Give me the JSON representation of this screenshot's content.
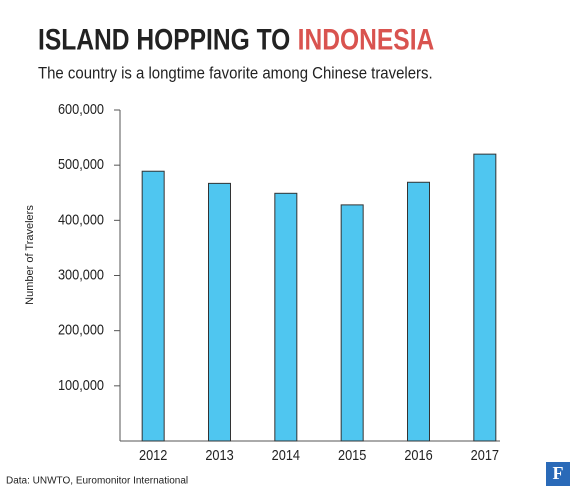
{
  "chart_data": {
    "type": "bar",
    "title": "ISLAND HOPPING TO",
    "title_highlight": "INDONESIA",
    "subtitle": "The country is a longtime favorite among Chinese travelers.",
    "y_label": "Number of Travelers",
    "source": "Data: UNWTO, Euromonitor International",
    "logo": "F",
    "categories": [
      "2012",
      "2013",
      "2014",
      "2015",
      "2016",
      "2017"
    ],
    "values": [
      489000,
      467000,
      449000,
      428000,
      469000,
      520000
    ],
    "color": "#4fc6f0",
    "ylim": [
      0,
      600000
    ],
    "yticks": [
      {
        "value": 100000,
        "label": "100,000"
      },
      {
        "value": 200000,
        "label": "200,000"
      },
      {
        "value": 300000,
        "label": "300,000"
      },
      {
        "value": 400000,
        "label": "400,000"
      },
      {
        "value": 500000,
        "label": "500,000"
      },
      {
        "value": 600000,
        "label": "600,000"
      }
    ],
    "grid": false
  }
}
